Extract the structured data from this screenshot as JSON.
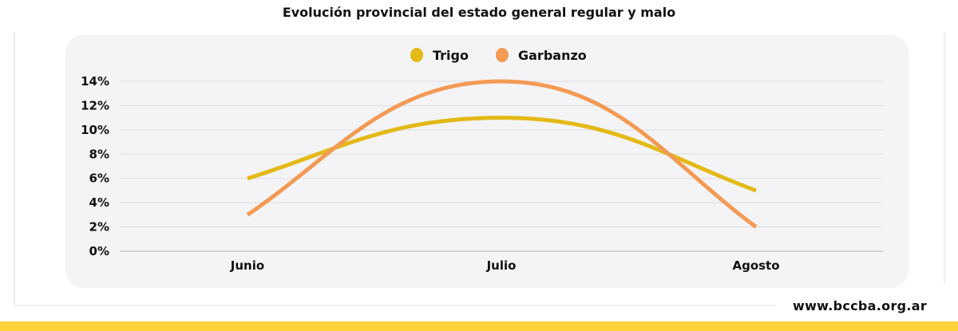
{
  "chart_data": {
    "type": "line",
    "title": "Evolución provincial del estado general regular y malo",
    "categories": [
      "Junio",
      "Julio",
      "Agosto"
    ],
    "series": [
      {
        "name": "Trigo",
        "values": [
          6,
          11,
          5
        ],
        "color": "#e3b916"
      },
      {
        "name": "Garbanzo",
        "values": [
          3,
          14,
          2
        ],
        "color": "#f39a55"
      }
    ],
    "yticks": [
      "0%",
      "2%",
      "4%",
      "6%",
      "8%",
      "10%",
      "12%",
      "14%"
    ],
    "ylim": [
      0,
      14
    ],
    "yunit": "%",
    "grid": true,
    "smooth": true,
    "legend": "top-center"
  },
  "footer": {
    "website": "www.bccba.org.ar",
    "band_color": "#ffd23a"
  }
}
